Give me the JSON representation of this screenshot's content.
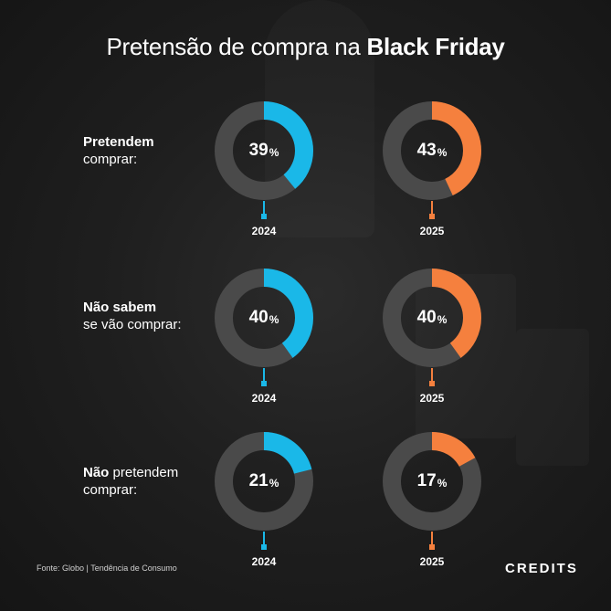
{
  "header": {
    "title_regular": "Pretensão de compra na ",
    "title_bold": "Black Friday"
  },
  "rows": [
    {
      "label_bold": "Pretendem",
      "label_line2": "comprar:"
    },
    {
      "label_bold": "Não sabem",
      "label_line2": "se vão comprar:"
    },
    {
      "label_bold": "Não",
      "label_rest": " pretendem",
      "label_line2": "comprar:"
    }
  ],
  "unit": "%",
  "footer": {
    "source": "Fonte: Globo | Tendência de Consumo"
  },
  "brand": {
    "logo_text": "CREDITS"
  },
  "colors": {
    "series_2024": "#1ab8e8",
    "series_2025": "#f5803e",
    "track": "#4a4a4a",
    "background": "#1c1c1c"
  },
  "chart_data": {
    "type": "donut",
    "title": "Pretensão de compra na Black Friday",
    "categories": [
      "Pretendem comprar",
      "Não sabem se vão comprar",
      "Não pretendem comprar"
    ],
    "series": [
      {
        "name": "2024",
        "values": [
          39,
          40,
          21
        ]
      },
      {
        "name": "2025",
        "values": [
          43,
          40,
          17
        ]
      }
    ],
    "value_labels": {
      "2024": [
        "39",
        "40",
        "21"
      ],
      "2025": [
        "43",
        "40",
        "17"
      ]
    },
    "years": [
      "2024",
      "2025"
    ]
  }
}
